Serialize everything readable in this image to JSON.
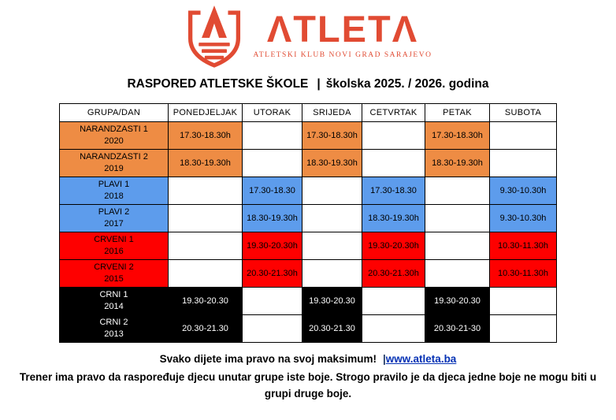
{
  "logo": {
    "brand": "ATLETA",
    "subtitle": "ATLETSKI KLUB NOVI GRAD SARAJEVO",
    "icon": "shield-a-icon",
    "color": "#E14B33"
  },
  "title": {
    "left": "RASPORED ATLETSKE ŠKOLE",
    "separator": "|",
    "right": "školska 2025. / 2026. godina"
  },
  "table": {
    "columns": [
      "GRUPA/DAN",
      "PONEDJELJAK",
      "UTORAK",
      "SRIJEDA",
      "CETVRTAK",
      "PETAK",
      "SUBOTA"
    ],
    "colors": {
      "orange": "#EE8C44",
      "blue": "#5D9CEC",
      "red": "#FE0000",
      "black": "#000000",
      "text_default": "#000000",
      "text_on_black": "#FFFFFF"
    },
    "rows": [
      {
        "group": "NARANDZASTI 1",
        "year": "2020",
        "color_key": "orange",
        "cells": [
          "17.30-18.30h",
          "",
          "17.30-18.30h",
          "",
          "17.30-18.30h",
          ""
        ]
      },
      {
        "group": "NARANDZASTI 2",
        "year": "2019",
        "color_key": "orange",
        "cells": [
          "18.30-19.30h",
          "",
          "18.30-19.30h",
          "",
          "18.30-19.30h",
          ""
        ]
      },
      {
        "group": "PLAVI 1",
        "year": "2018",
        "color_key": "blue",
        "cells": [
          "",
          "17.30-18.30",
          "",
          "17.30-18.30",
          "",
          "9.30-10.30h"
        ]
      },
      {
        "group": "PLAVI 2",
        "year": "2017",
        "color_key": "blue",
        "cells": [
          "",
          "18.30-19.30h",
          "",
          "18.30-19.30h",
          "",
          "9.30-10.30h"
        ]
      },
      {
        "group": "CRVENI 1",
        "year": "2016",
        "color_key": "red",
        "cells": [
          "",
          "19.30-20.30h",
          "",
          "19.30-20.30h",
          "",
          "10.30-11.30h"
        ]
      },
      {
        "group": "CRVENI 2",
        "year": "2015",
        "color_key": "red",
        "cells": [
          "",
          "20.30-21.30h",
          "",
          "20.30-21.30h",
          "",
          "10.30-11.30h"
        ]
      },
      {
        "group": "CRNI 1",
        "year": "2014",
        "color_key": "black",
        "cells": [
          "19.30-20.30",
          "",
          "19.30-20.30",
          "",
          "19.30-20.30",
          ""
        ]
      },
      {
        "group": "CRNI 2",
        "year": "2013",
        "color_key": "black",
        "cells": [
          "20.30-21.30",
          "",
          "20.30-21.30",
          "",
          "20.30-21-30",
          ""
        ]
      }
    ]
  },
  "footer": {
    "line1": "Svako dijete ima pravo na svoj maksimum!",
    "separator": "|",
    "link": "www.atleta.ba",
    "link_color": "#0431B4",
    "separator_color": "#1F3864",
    "line2": "Trener ima pravo da raspoređuje djecu unutar grupe iste boje. Strogo pravilo je da djeca jedne boje ne mogu biti u grupi druge boje."
  }
}
